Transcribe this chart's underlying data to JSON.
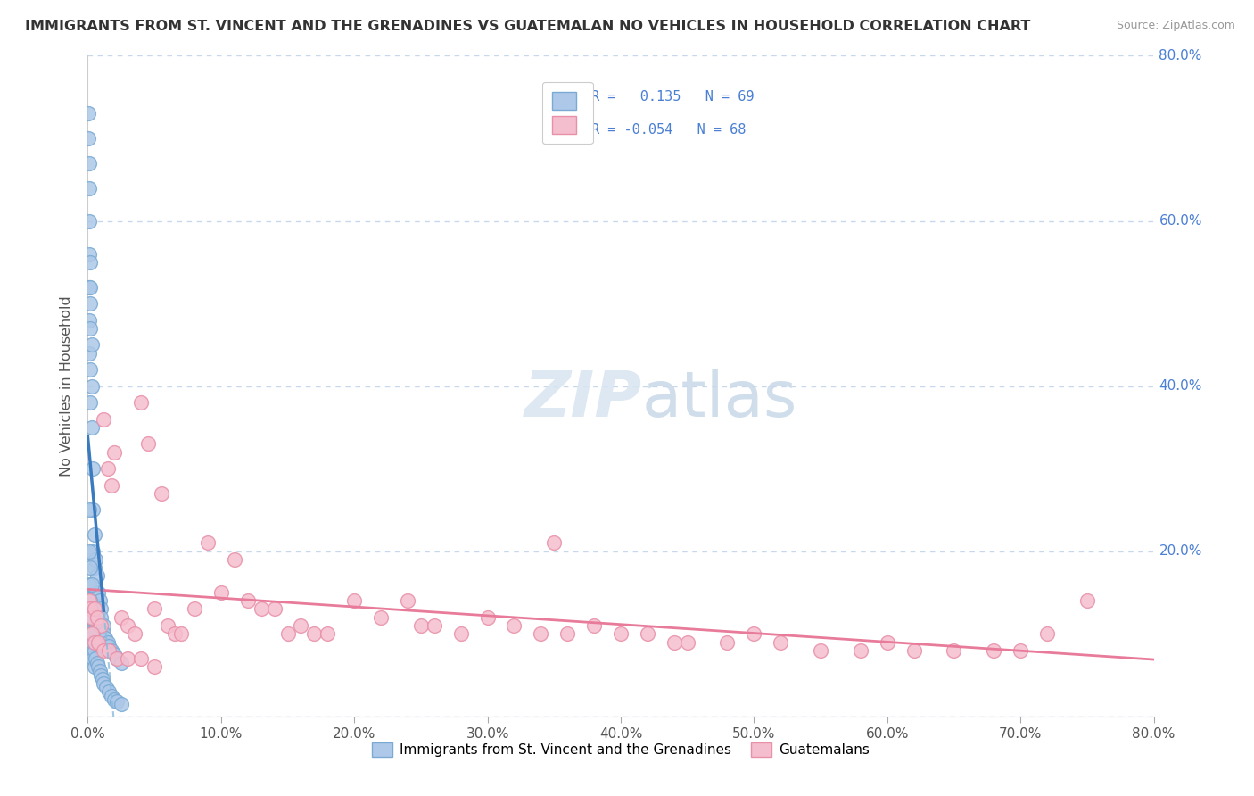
{
  "title": "IMMIGRANTS FROM ST. VINCENT AND THE GRENADINES VS GUATEMALAN NO VEHICLES IN HOUSEHOLD CORRELATION CHART",
  "source": "Source: ZipAtlas.com",
  "ylabel": "No Vehicles in Household",
  "legend_label_blue": "Immigrants from St. Vincent and the Grenadines",
  "legend_label_pink": "Guatemalans",
  "R_blue": 0.135,
  "N_blue": 69,
  "R_pink": -0.054,
  "N_pink": 68,
  "blue_color": "#adc8e8",
  "blue_edge": "#7aaad4",
  "pink_color": "#f5bece",
  "pink_edge": "#e890a8",
  "trend_blue_solid_color": "#3a7abf",
  "trend_blue_dash_color": "#88bbdd",
  "trend_pink_color": "#e87a9a",
  "background_color": "#ffffff",
  "grid_color": "#c8d8ec",
  "right_tick_color": "#4a7fd4",
  "xlim": [
    0.0,
    0.8
  ],
  "ylim": [
    0.0,
    0.8
  ],
  "blue_x": [
    0.0005,
    0.0005,
    0.0008,
    0.0008,
    0.001,
    0.001,
    0.001,
    0.001,
    0.001,
    0.0015,
    0.0015,
    0.002,
    0.002,
    0.002,
    0.002,
    0.003,
    0.003,
    0.003,
    0.004,
    0.004,
    0.004,
    0.005,
    0.005,
    0.006,
    0.006,
    0.007,
    0.008,
    0.009,
    0.01,
    0.01,
    0.012,
    0.012,
    0.013,
    0.015,
    0.016,
    0.018,
    0.02,
    0.022,
    0.025,
    0.001,
    0.001,
    0.001,
    0.001,
    0.001,
    0.002,
    0.002,
    0.003,
    0.003,
    0.004,
    0.004,
    0.005,
    0.005,
    0.006,
    0.007,
    0.008,
    0.009,
    0.01,
    0.011,
    0.012,
    0.014,
    0.016,
    0.018,
    0.02,
    0.022,
    0.025,
    0.001,
    0.001,
    0.002,
    0.003
  ],
  "blue_y": [
    0.73,
    0.7,
    0.67,
    0.64,
    0.6,
    0.56,
    0.52,
    0.48,
    0.44,
    0.52,
    0.47,
    0.42,
    0.38,
    0.55,
    0.5,
    0.45,
    0.4,
    0.35,
    0.3,
    0.25,
    0.2,
    0.22,
    0.18,
    0.19,
    0.15,
    0.17,
    0.15,
    0.14,
    0.13,
    0.12,
    0.11,
    0.1,
    0.095,
    0.09,
    0.085,
    0.08,
    0.075,
    0.07,
    0.065,
    0.16,
    0.14,
    0.12,
    0.1,
    0.08,
    0.14,
    0.12,
    0.1,
    0.08,
    0.09,
    0.07,
    0.08,
    0.06,
    0.07,
    0.065,
    0.06,
    0.055,
    0.05,
    0.045,
    0.04,
    0.035,
    0.03,
    0.025,
    0.02,
    0.018,
    0.015,
    0.25,
    0.2,
    0.18,
    0.16
  ],
  "pink_x": [
    0.001,
    0.002,
    0.003,
    0.005,
    0.007,
    0.01,
    0.012,
    0.015,
    0.018,
    0.02,
    0.025,
    0.03,
    0.035,
    0.04,
    0.045,
    0.05,
    0.055,
    0.06,
    0.065,
    0.07,
    0.08,
    0.09,
    0.1,
    0.11,
    0.12,
    0.13,
    0.14,
    0.15,
    0.16,
    0.17,
    0.18,
    0.2,
    0.22,
    0.24,
    0.25,
    0.26,
    0.28,
    0.3,
    0.32,
    0.34,
    0.35,
    0.36,
    0.38,
    0.4,
    0.42,
    0.44,
    0.45,
    0.48,
    0.5,
    0.52,
    0.55,
    0.58,
    0.6,
    0.62,
    0.65,
    0.68,
    0.7,
    0.72,
    0.75,
    0.003,
    0.005,
    0.008,
    0.012,
    0.016,
    0.022,
    0.03,
    0.04,
    0.05
  ],
  "pink_y": [
    0.14,
    0.13,
    0.12,
    0.13,
    0.12,
    0.11,
    0.36,
    0.3,
    0.28,
    0.32,
    0.12,
    0.11,
    0.1,
    0.38,
    0.33,
    0.13,
    0.27,
    0.11,
    0.1,
    0.1,
    0.13,
    0.21,
    0.15,
    0.19,
    0.14,
    0.13,
    0.13,
    0.1,
    0.11,
    0.1,
    0.1,
    0.14,
    0.12,
    0.14,
    0.11,
    0.11,
    0.1,
    0.12,
    0.11,
    0.1,
    0.21,
    0.1,
    0.11,
    0.1,
    0.1,
    0.09,
    0.09,
    0.09,
    0.1,
    0.09,
    0.08,
    0.08,
    0.09,
    0.08,
    0.08,
    0.08,
    0.08,
    0.1,
    0.14,
    0.1,
    0.09,
    0.09,
    0.08,
    0.08,
    0.07,
    0.07,
    0.07,
    0.06
  ]
}
